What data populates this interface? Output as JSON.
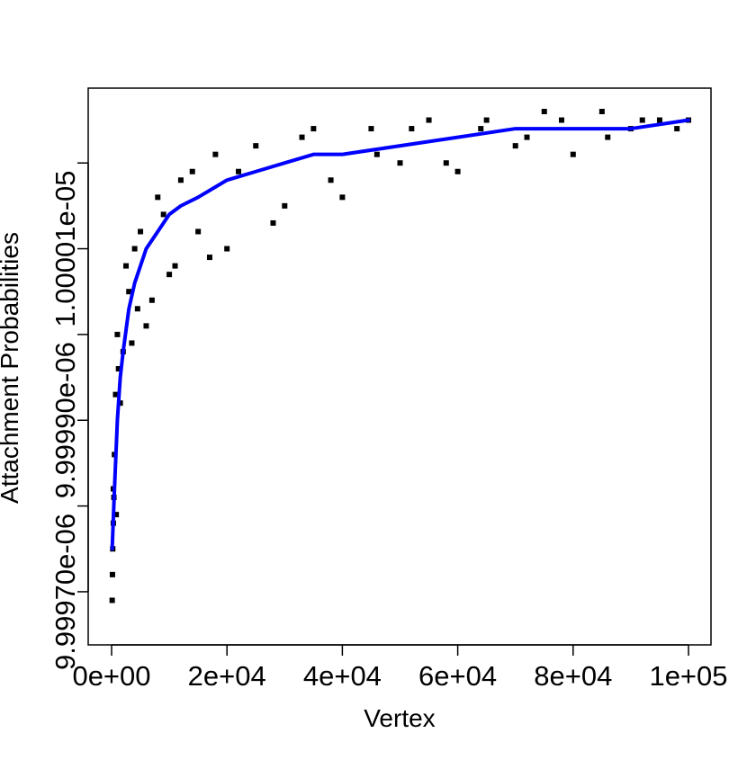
{
  "chart_data": {
    "type": "scatter",
    "title": "",
    "xlabel": "Vertex",
    "ylabel": "Attachment Probabilities",
    "xlim": [
      0,
      100000
    ],
    "ylim": [
      9.99968e-06,
      1.000026e-05
    ],
    "grid": false,
    "x_ticks": [
      {
        "value": 0,
        "label": "0e+00"
      },
      {
        "value": 20000,
        "label": "2e+04"
      },
      {
        "value": 40000,
        "label": "4e+04"
      },
      {
        "value": 60000,
        "label": "6e+04"
      },
      {
        "value": 80000,
        "label": "8e+04"
      },
      {
        "value": 100000,
        "label": "1e+05"
      }
    ],
    "y_ticks": [
      {
        "value": 9.9997e-06,
        "label": "9.99970e-06"
      },
      {
        "value": 9.9998e-06,
        "label": ""
      },
      {
        "value": 9.9999e-06,
        "label": "9.99990e-06"
      },
      {
        "value": 1e-05,
        "label": ""
      },
      {
        "value": 1.00001e-05,
        "label": "1.00001e-05"
      },
      {
        "value": 1.00002e-05,
        "label": ""
      }
    ],
    "series": [
      {
        "type": "line",
        "color": "#0000ff",
        "x": [
          100,
          500,
          1000,
          1500,
          2000,
          3000,
          4000,
          5000,
          6000,
          8000,
          10000,
          12000,
          15000,
          20000,
          25000,
          30000,
          35000,
          40000,
          50000,
          60000,
          70000,
          80000,
          90000,
          100000
        ],
        "y": [
          9.99975e-06,
          9.99982e-06,
          9.9999e-06,
          9.99995e-06,
          9.99998e-06,
          1.000003e-05,
          1.000006e-05,
          1.000008e-05,
          1.00001e-05,
          1.000012e-05,
          1.000014e-05,
          1.000015e-05,
          1.000016e-05,
          1.000018e-05,
          1.000019e-05,
          1.00002e-05,
          1.000021e-05,
          1.000021e-05,
          1.000022e-05,
          1.000023e-05,
          1.000024e-05,
          1.000024e-05,
          1.000024e-05,
          1.000025e-05
        ]
      },
      {
        "type": "scatter",
        "color": "#000000",
        "marker": "filled-square",
        "x": [
          100,
          150,
          200,
          300,
          400,
          500,
          700,
          1000,
          1500,
          2000,
          3000,
          4000,
          5000,
          6000,
          8000,
          10000,
          12000,
          15000,
          18000,
          20000,
          25000,
          30000,
          35000,
          40000,
          45000,
          50000,
          55000,
          60000,
          65000,
          70000,
          75000,
          80000,
          85000,
          90000,
          95000,
          100000,
          300,
          800,
          1200,
          2500,
          3500,
          4500,
          7000,
          9000,
          11000,
          14000,
          17000,
          22000,
          28000,
          33000,
          38000,
          46000,
          52000,
          58000,
          64000,
          72000,
          78000,
          86000,
          92000,
          98000
        ],
        "y": [
          9.99969e-06,
          9.99972e-06,
          9.99975e-06,
          9.99978e-06,
          9.99981e-06,
          9.99986e-06,
          9.99993e-06,
          1e-05,
          9.99992e-06,
          9.99998e-06,
          1.000005e-05,
          1.00001e-05,
          1.000012e-05,
          1.000001e-05,
          1.000016e-05,
          1.000007e-05,
          1.000018e-05,
          1.000012e-05,
          1.000021e-05,
          1.00001e-05,
          1.000022e-05,
          1.000015e-05,
          1.000024e-05,
          1.000016e-05,
          1.000024e-05,
          1.00002e-05,
          1.000025e-05,
          1.000019e-05,
          1.000025e-05,
          1.000022e-05,
          1.000026e-05,
          1.000021e-05,
          1.000026e-05,
          1.000024e-05,
          1.000025e-05,
          1.000025e-05,
          9.99982e-06,
          9.99979e-06,
          9.99996e-06,
          1.000008e-05,
          9.99999e-06,
          1.000003e-05,
          1.000004e-05,
          1.000014e-05,
          1.000008e-05,
          1.000019e-05,
          1.000009e-05,
          1.000019e-05,
          1.000013e-05,
          1.000023e-05,
          1.000018e-05,
          1.000021e-05,
          1.000024e-05,
          1.00002e-05,
          1.000024e-05,
          1.000023e-05,
          1.000025e-05,
          1.000023e-05,
          1.000025e-05,
          1.000024e-05
        ]
      }
    ]
  }
}
